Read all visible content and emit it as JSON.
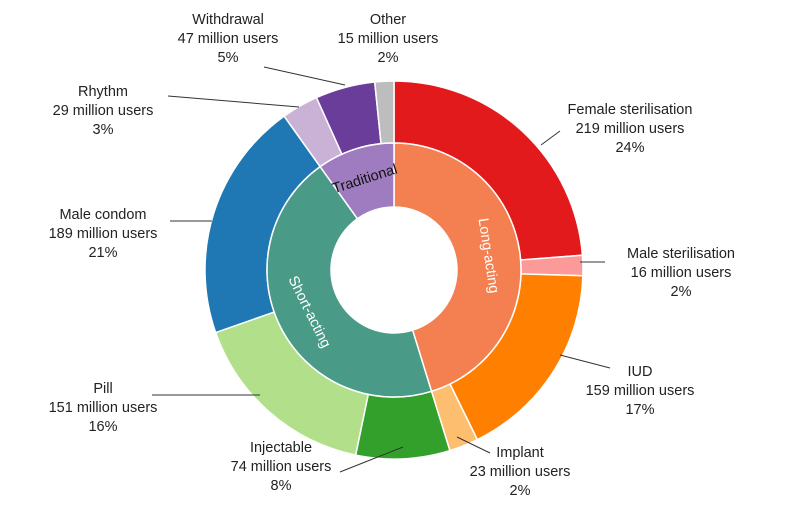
{
  "chart_data": {
    "type": "pie",
    "subtype": "nested-donut",
    "title": "",
    "outer": [
      {
        "name": "Female sterilisation",
        "users": "219 million users",
        "pct": "24%",
        "value": 219,
        "color": "#e31a1c"
      },
      {
        "name": "Male sterilisation",
        "users": "16 million users",
        "pct": "2%",
        "value": 16,
        "color": "#fb9a99"
      },
      {
        "name": "IUD",
        "users": "159 million users",
        "pct": "17%",
        "value": 159,
        "color": "#ff7f00"
      },
      {
        "name": "Implant",
        "users": "23 million users",
        "pct": "2%",
        "value": 23,
        "color": "#fdbf6f"
      },
      {
        "name": "Injectable",
        "users": "74 million users",
        "pct": "8%",
        "value": 74,
        "color": "#33a02c"
      },
      {
        "name": "Pill",
        "users": "151 million users",
        "pct": "16%",
        "value": 151,
        "color": "#b2df8a"
      },
      {
        "name": "Male condom",
        "users": "189 million users",
        "pct": "21%",
        "value": 189,
        "color": "#1f78b4"
      },
      {
        "name": "Rhythm",
        "users": "29 million users",
        "pct": "3%",
        "value": 29,
        "color": "#cab2d6"
      },
      {
        "name": "Withdrawal",
        "users": "47 million users",
        "pct": "5%",
        "value": 47,
        "color": "#6a3d9a"
      },
      {
        "name": "Other",
        "users": "15 million users",
        "pct": "2%",
        "value": 15,
        "color": "#bdbdbd"
      }
    ],
    "inner": [
      {
        "name": "Long-acting",
        "value": 417,
        "color": "#f47f50",
        "text_color": "#ffffff"
      },
      {
        "name": "Short-acting",
        "value": 414,
        "color": "#4a9a88",
        "text_color": "#ffffff"
      },
      {
        "name": "Traditional",
        "value": 91,
        "color": "#9e7cbf",
        "text_color": "#111111"
      }
    ]
  }
}
